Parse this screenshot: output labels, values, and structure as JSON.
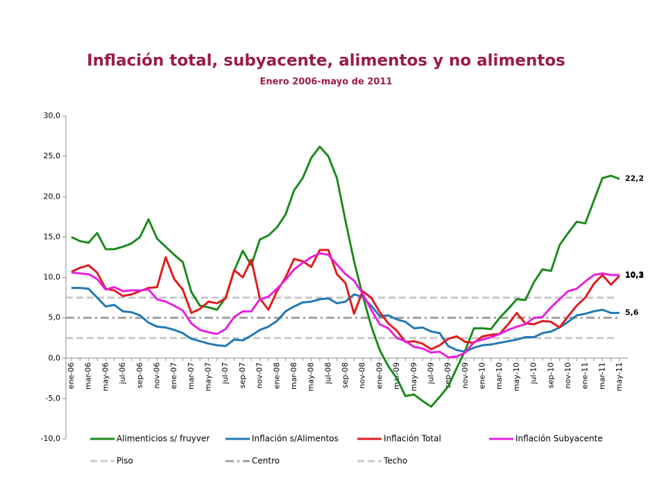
{
  "chart_data": {
    "type": "line",
    "title": "Inflación total, subyacente, alimentos y no alimentos",
    "subtitle": "Enero 2006-mayo de 2011",
    "categories": [
      "ene-06",
      null,
      "mar-06",
      null,
      "may-06",
      null,
      "jul-06",
      null,
      "sep-06",
      null,
      "nov-06",
      null,
      "ene-07",
      null,
      "mar-07",
      null,
      "may-07",
      null,
      "jul-07",
      null,
      "sep-07",
      null,
      "nov-07",
      null,
      "ene-08",
      null,
      "mar-08",
      null,
      "may-08",
      null,
      "jul-08",
      null,
      "sep-08",
      null,
      "nov-08",
      null,
      "ene-09",
      null,
      "mar-09",
      null,
      "may-09",
      null,
      "jul-09",
      null,
      "sep-09",
      null,
      "nov-09",
      null,
      "ene-10",
      null,
      "mar-10",
      null,
      "may-10",
      null,
      "jul-10",
      null,
      "sep-10",
      null,
      "nov-10",
      null,
      "ene-11",
      null,
      "mar-11",
      null,
      "may-11"
    ],
    "ylim": [
      -10,
      30
    ],
    "yticks": [
      {
        "value": -10,
        "label": "-10,0"
      },
      {
        "value": -5,
        "label": "-5,0"
      },
      {
        "value": 0,
        "label": "0,0"
      },
      {
        "value": 5,
        "label": "5,0"
      },
      {
        "value": 10,
        "label": "10,0"
      },
      {
        "value": 15,
        "label": "15,0"
      },
      {
        "value": 20,
        "label": "20,0"
      },
      {
        "value": 25,
        "label": "25,0"
      },
      {
        "value": 30,
        "label": "30,0"
      }
    ],
    "series": [
      {
        "name": "Alimenticios s/ fruyver",
        "color": "#1a8a1a",
        "values": [
          15.0,
          14.5,
          14.3,
          15.5,
          13.5,
          13.5,
          13.8,
          14.2,
          15.0,
          17.2,
          14.8,
          13.8,
          12.8,
          11.9,
          8.2,
          6.5,
          6.3,
          6.0,
          7.5,
          10.8,
          13.3,
          11.5,
          14.7,
          15.2,
          16.2,
          17.8,
          20.8,
          22.3,
          24.8,
          26.2,
          25.0,
          22.3,
          17.0,
          12.0,
          7.8,
          4.0,
          1.0,
          -1.0,
          -2.5,
          -4.7,
          -4.5,
          -5.3,
          -6.0,
          -4.8,
          -3.5,
          -1.2,
          1.0,
          3.7,
          3.7,
          3.6,
          5.0,
          6.1,
          7.3,
          7.2,
          9.4,
          11.0,
          10.8,
          14.0,
          15.5,
          16.9,
          16.7,
          19.5,
          22.3,
          22.6,
          22.2
        ],
        "value_labels": [
          null,
          null,
          null,
          null,
          null,
          null,
          null,
          null,
          null,
          null,
          null,
          null,
          null,
          null,
          null,
          null,
          null,
          null,
          null,
          null,
          null,
          null,
          null,
          null,
          null,
          null,
          null,
          null,
          null,
          null,
          null,
          null,
          null,
          null,
          null,
          null,
          null,
          null,
          null,
          null,
          null,
          null,
          null,
          null,
          null,
          null,
          null,
          null,
          null,
          null,
          null,
          null,
          null,
          null,
          null,
          null,
          null,
          null,
          null,
          null,
          null,
          null,
          null,
          null,
          "22,2"
        ]
      },
      {
        "name": "Inflación s/Alimentos",
        "color": "#1f78b4",
        "values": [
          8.7,
          8.7,
          8.6,
          7.5,
          6.4,
          6.6,
          5.8,
          5.7,
          5.3,
          4.4,
          3.9,
          3.8,
          3.5,
          3.1,
          2.4,
          2.1,
          1.8,
          1.6,
          1.5,
          2.3,
          2.2,
          2.8,
          3.5,
          3.9,
          4.6,
          5.8,
          6.4,
          6.9,
          7.0,
          7.3,
          7.4,
          6.8,
          7.0,
          7.9,
          7.6,
          6.5,
          5.2,
          5.3,
          4.8,
          4.5,
          3.7,
          3.8,
          3.3,
          3.1,
          1.5,
          1.0,
          0.8,
          1.3,
          1.6,
          1.7,
          1.9,
          2.1,
          2.3,
          2.6,
          2.6,
          3.1,
          3.3,
          3.8,
          4.5,
          5.3,
          5.5,
          5.8,
          6.0,
          5.6,
          5.6
        ],
        "value_labels": [
          null,
          null,
          null,
          null,
          null,
          null,
          null,
          null,
          null,
          null,
          null,
          null,
          null,
          null,
          null,
          null,
          null,
          null,
          null,
          null,
          null,
          null,
          null,
          null,
          null,
          null,
          null,
          null,
          null,
          null,
          null,
          null,
          null,
          null,
          null,
          null,
          null,
          null,
          null,
          null,
          null,
          null,
          null,
          null,
          null,
          null,
          null,
          null,
          null,
          null,
          null,
          null,
          null,
          null,
          null,
          null,
          null,
          null,
          null,
          null,
          null,
          null,
          null,
          null,
          "5,6"
        ]
      },
      {
        "name": "Inflación Total",
        "color": "#e31a1c",
        "values": [
          10.7,
          11.2,
          11.5,
          10.6,
          8.6,
          8.4,
          7.7,
          7.9,
          8.3,
          8.7,
          8.8,
          12.5,
          9.8,
          8.5,
          5.6,
          6.1,
          7.0,
          6.8,
          7.4,
          10.9,
          10.0,
          12.2,
          7.4,
          6.0,
          8.3,
          10.0,
          12.3,
          12.0,
          11.3,
          13.4,
          13.4,
          10.4,
          9.3,
          5.5,
          8.3,
          7.5,
          5.7,
          4.3,
          3.4,
          2.0,
          2.1,
          1.8,
          1.1,
          1.6,
          2.4,
          2.7,
          2.0,
          1.9,
          2.7,
          2.9,
          3.0,
          4.2,
          5.6,
          4.3,
          4.2,
          4.6,
          4.5,
          3.8,
          5.2,
          6.5,
          7.5,
          9.2,
          10.3,
          9.1,
          10.2
        ],
        "value_labels": [
          null,
          null,
          null,
          null,
          null,
          null,
          null,
          null,
          null,
          null,
          null,
          null,
          null,
          null,
          null,
          null,
          null,
          null,
          null,
          null,
          null,
          null,
          null,
          null,
          null,
          null,
          null,
          null,
          null,
          null,
          null,
          null,
          null,
          null,
          null,
          null,
          null,
          null,
          null,
          null,
          null,
          null,
          null,
          null,
          null,
          null,
          null,
          null,
          null,
          null,
          null,
          null,
          null,
          null,
          null,
          null,
          null,
          null,
          null,
          null,
          null,
          null,
          null,
          null,
          "10,2"
        ]
      },
      {
        "name": "Inflación Subyacente",
        "color": "#e81ee0",
        "values": [
          10.6,
          10.5,
          10.4,
          9.8,
          8.5,
          8.8,
          8.3,
          8.4,
          8.4,
          8.5,
          7.3,
          7.0,
          6.5,
          5.9,
          4.3,
          3.5,
          3.2,
          3.0,
          3.6,
          5.1,
          5.8,
          5.8,
          7.3,
          7.6,
          8.6,
          9.7,
          11.0,
          11.8,
          12.5,
          13.0,
          12.8,
          11.6,
          10.4,
          9.6,
          8.0,
          6.0,
          4.2,
          3.7,
          2.5,
          2.1,
          1.4,
          1.2,
          0.7,
          0.8,
          0.1,
          0.2,
          0.7,
          2.0,
          2.3,
          2.6,
          3.0,
          3.5,
          3.9,
          4.2,
          5.0,
          5.1,
          6.3,
          7.3,
          8.3,
          8.6,
          9.5,
          10.3,
          10.5,
          10.3,
          10.3
        ],
        "value_labels": [
          null,
          null,
          null,
          null,
          null,
          null,
          null,
          null,
          null,
          null,
          null,
          null,
          null,
          null,
          null,
          null,
          null,
          null,
          null,
          null,
          null,
          null,
          null,
          null,
          null,
          null,
          null,
          null,
          null,
          null,
          null,
          null,
          null,
          null,
          null,
          null,
          null,
          null,
          null,
          null,
          null,
          null,
          null,
          null,
          null,
          null,
          null,
          null,
          null,
          null,
          null,
          null,
          null,
          null,
          null,
          null,
          null,
          null,
          null,
          null,
          null,
          null,
          null,
          null,
          "10,3"
        ]
      }
    ],
    "reference_lines": [
      {
        "name": "Piso",
        "value": 2.5,
        "color": "#c8c8c8",
        "dash": "dash"
      },
      {
        "name": "Centro",
        "value": 5,
        "color": "#a0a0a0",
        "dash": "dashdot"
      },
      {
        "name": "Techo",
        "value": 7.5,
        "color": "#c8c8c8",
        "dash": "dash"
      }
    ]
  }
}
